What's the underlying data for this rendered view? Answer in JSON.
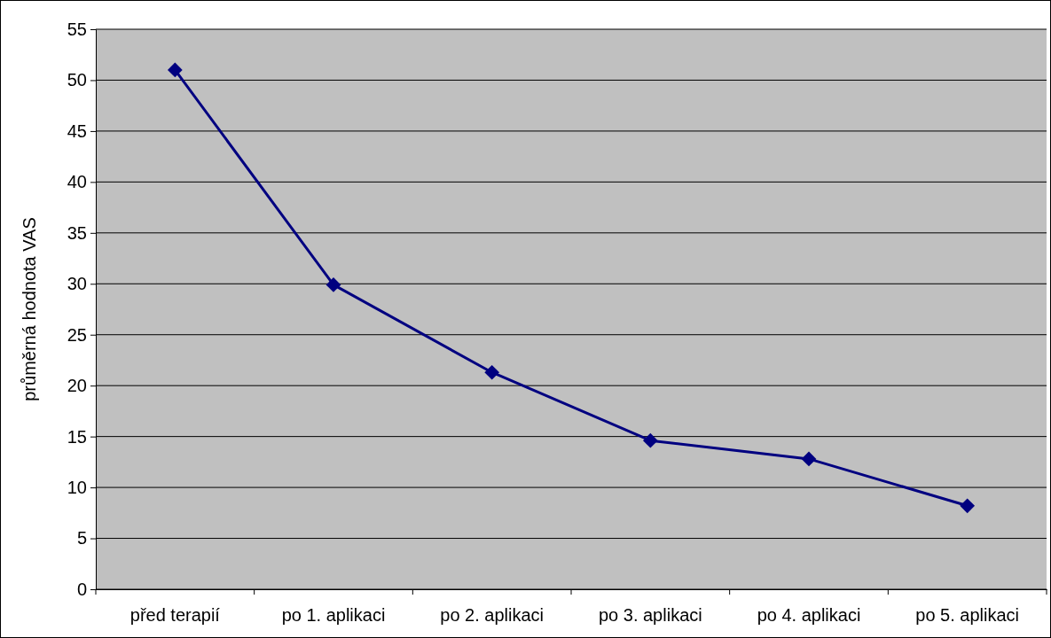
{
  "chart_data": {
    "type": "line",
    "ylabel": "průměrná hodnota VAS",
    "categories": [
      "před terapií",
      "po 1. aplikaci",
      "po 2. aplikaci",
      "po 3. aplikaci",
      "po 4. aplikaci",
      "po 5. aplikaci"
    ],
    "series": [
      {
        "color": "#000080",
        "values": [
          51.0,
          29.9,
          21.3,
          14.6,
          12.8,
          8.2
        ]
      }
    ],
    "ylim": [
      0,
      55
    ],
    "yticks": [
      0,
      5,
      10,
      15,
      20,
      25,
      30,
      35,
      40,
      45,
      50,
      55
    ],
    "grid": "y",
    "marker": "diamond",
    "line_style": "solid"
  }
}
